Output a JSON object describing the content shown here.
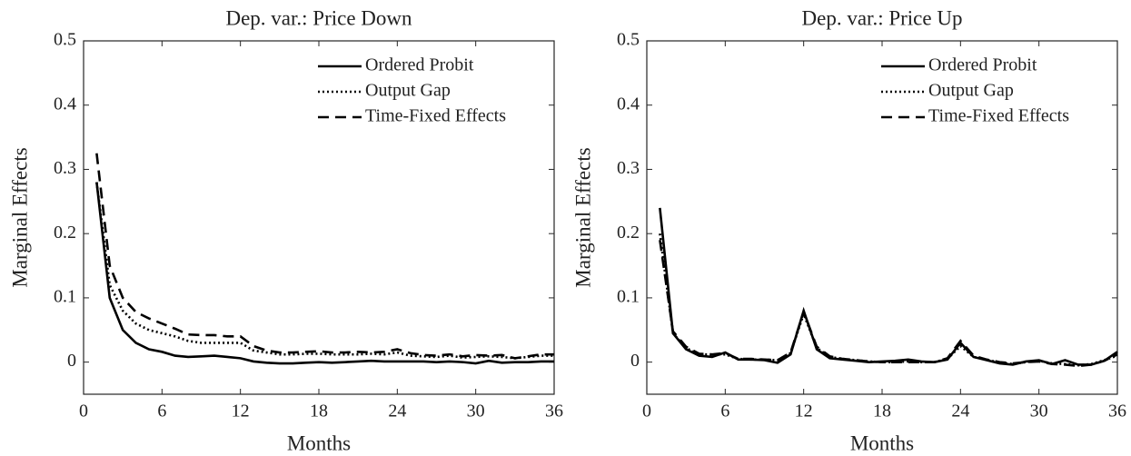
{
  "chart_data": [
    {
      "type": "line",
      "title": "Dep. var.: Price Down",
      "xlabel": "Months",
      "ylabel": "Marginal Effects",
      "x": [
        1,
        2,
        3,
        4,
        5,
        6,
        7,
        8,
        9,
        10,
        11,
        12,
        13,
        14,
        15,
        16,
        17,
        18,
        19,
        20,
        21,
        22,
        23,
        24,
        25,
        26,
        27,
        28,
        29,
        30,
        31,
        32,
        33,
        34,
        35,
        36
      ],
      "series": [
        {
          "name": "Ordered Probit",
          "color": "#000000",
          "dash": "solid",
          "values": [
            0.28,
            0.1,
            0.05,
            0.03,
            0.02,
            0.016,
            0.01,
            0.008,
            0.009,
            0.01,
            0.008,
            0.006,
            0.001,
            -0.001,
            -0.002,
            -0.002,
            -0.001,
            0,
            -0.001,
            0,
            0.001,
            0.002,
            0.001,
            0.001,
            0.001,
            0.001,
            0,
            0.001,
            0,
            -0.002,
            0.002,
            -0.001,
            0,
            0,
            0.001,
            0.001
          ]
        },
        {
          "name": "Output Gap",
          "color": "#000000",
          "dash": "dotted",
          "values": [
            0.28,
            0.12,
            0.08,
            0.06,
            0.05,
            0.045,
            0.04,
            0.033,
            0.03,
            0.03,
            0.03,
            0.03,
            0.018,
            0.015,
            0.012,
            0.012,
            0.013,
            0.013,
            0.012,
            0.012,
            0.012,
            0.013,
            0.012,
            0.015,
            0.01,
            0.009,
            0.008,
            0.01,
            0.007,
            0.008,
            0.009,
            0.008,
            0.006,
            0.008,
            0.01,
            0.01
          ]
        },
        {
          "name": "Time-Fixed Effects",
          "color": "#000000",
          "dash": "dashed",
          "values": [
            0.325,
            0.15,
            0.1,
            0.078,
            0.068,
            0.06,
            0.052,
            0.043,
            0.042,
            0.042,
            0.04,
            0.04,
            0.025,
            0.018,
            0.015,
            0.015,
            0.016,
            0.017,
            0.015,
            0.015,
            0.016,
            0.015,
            0.016,
            0.02,
            0.014,
            0.011,
            0.01,
            0.012,
            0.009,
            0.011,
            0.01,
            0.011,
            0.006,
            0.009,
            0.012,
            0.012
          ]
        }
      ],
      "xlim": [
        0,
        36
      ],
      "xticks": [
        0,
        6,
        12,
        18,
        24,
        30,
        36
      ],
      "ylim": [
        -0.05,
        0.5
      ],
      "yticks": [
        0,
        0.1,
        0.2,
        0.3,
        0.4,
        0.5
      ],
      "grid": false,
      "legend": "upper right"
    },
    {
      "type": "line",
      "title": "Dep. var.: Price Up",
      "xlabel": "Months",
      "ylabel": "Marginal Effects",
      "x": [
        1,
        2,
        3,
        4,
        5,
        6,
        7,
        8,
        9,
        10,
        11,
        12,
        13,
        14,
        15,
        16,
        17,
        18,
        19,
        20,
        21,
        22,
        23,
        24,
        25,
        26,
        27,
        28,
        29,
        30,
        31,
        32,
        33,
        34,
        35,
        36
      ],
      "series": [
        {
          "name": "Ordered Probit",
          "color": "#000000",
          "dash": "solid",
          "values": [
            0.24,
            0.045,
            0.02,
            0.01,
            0.008,
            0.015,
            0.004,
            0.004,
            0.003,
            -0.001,
            0.012,
            0.08,
            0.02,
            0.006,
            0.004,
            0.002,
            0,
            0.001,
            0.002,
            0.004,
            0.001,
            0,
            0.004,
            0.03,
            0.008,
            0.003,
            -0.002,
            -0.004,
            0.001,
            0.003,
            -0.003,
            0.003,
            -0.004,
            -0.004,
            0.002,
            0.016
          ]
        },
        {
          "name": "Output Gap",
          "color": "#000000",
          "dash": "dotted",
          "values": [
            0.2,
            0.045,
            0.022,
            0.012,
            0.012,
            0.012,
            0.005,
            0.004,
            0.004,
            0.003,
            0.014,
            0.075,
            0.022,
            0.008,
            0.005,
            0.003,
            0.001,
            0,
            0,
            0.001,
            0,
            0,
            0.005,
            0.025,
            0.008,
            0.004,
            -0.001,
            -0.003,
            0,
            0.002,
            -0.002,
            -0.003,
            -0.005,
            -0.003,
            0.003,
            0.01
          ]
        },
        {
          "name": "Time-Fixed Effects",
          "color": "#000000",
          "dash": "dashed",
          "values": [
            0.19,
            0.048,
            0.024,
            0.013,
            0.012,
            0.014,
            0.005,
            0.005,
            0.004,
            0.003,
            0.015,
            0.078,
            0.024,
            0.009,
            0.005,
            0.003,
            0.001,
            0,
            0,
            0,
            0,
            0,
            0.006,
            0.033,
            0.01,
            0.004,
            0,
            -0.002,
            0,
            0.001,
            -0.003,
            -0.004,
            -0.006,
            -0.004,
            0.002,
            0.012
          ]
        }
      ],
      "xlim": [
        0,
        36
      ],
      "xticks": [
        0,
        6,
        12,
        18,
        24,
        30,
        36
      ],
      "ylim": [
        -0.05,
        0.5
      ],
      "yticks": [
        0,
        0.1,
        0.2,
        0.3,
        0.4,
        0.5
      ],
      "grid": false,
      "legend": "upper right"
    }
  ]
}
